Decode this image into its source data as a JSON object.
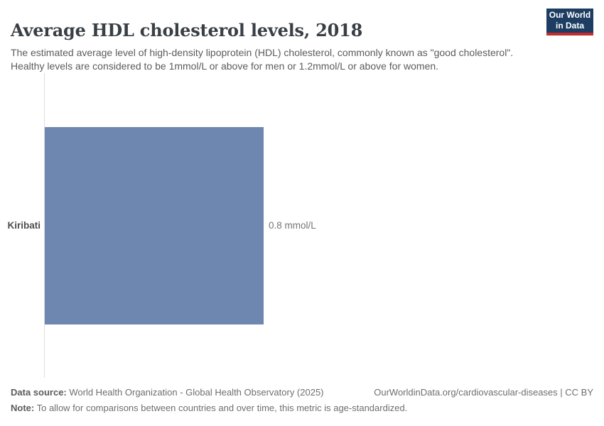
{
  "header": {
    "title": "Average HDL cholesterol levels, 2018",
    "subtitle": "The estimated average level of high-density lipoprotein (HDL) cholesterol, commonly known as \"good cholesterol\". Healthy levels are considered to be 1mmol/L or above for men or 1.2mmol/L or above for women.",
    "logo": {
      "line1": "Our World",
      "line2": "in Data"
    }
  },
  "chart_data": {
    "type": "bar",
    "orientation": "horizontal",
    "title": "Average HDL cholesterol levels, 2018",
    "categories": [
      "Kiribati"
    ],
    "values": [
      0.8
    ],
    "unit": "mmol/L",
    "value_labels": [
      "0.8 mmol/L"
    ],
    "xlabel": "",
    "ylabel": "",
    "x_axis_visible": false,
    "grid": false,
    "legend": false
  },
  "colors": {
    "bar": "#6e87b1",
    "axis_line": "#dcdcdc",
    "logo_background": "#1d3d63",
    "logo_stripe": "#c52b2d"
  },
  "footer": {
    "data_source_label": "Data source:",
    "data_source": " World Health Organization - Global Health Observatory (2025)",
    "note_label": "Note:",
    "note": " To allow for comparisons between countries and over time, this metric is age-standardized.",
    "attribution": "OurWorldinData.org/cardiovascular-diseases | CC BY"
  }
}
